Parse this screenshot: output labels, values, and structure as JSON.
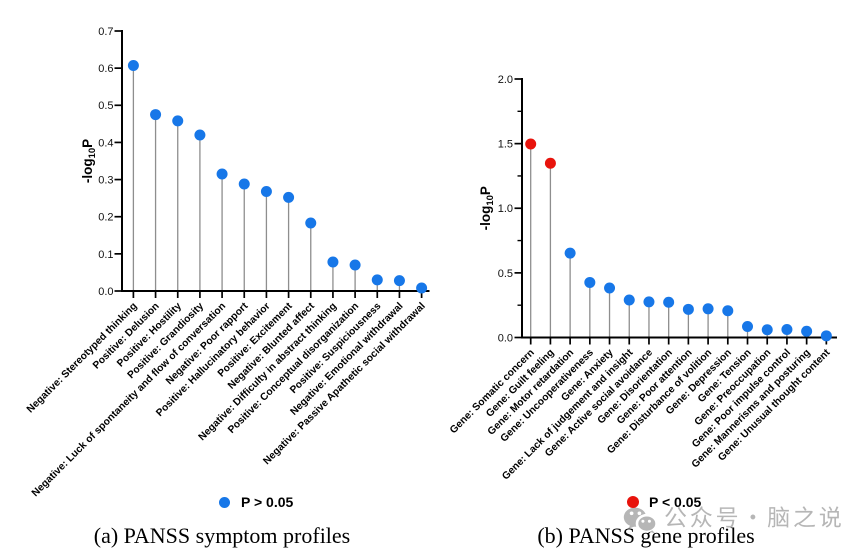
{
  "figure": {
    "background": "#ffffff",
    "type": "lollipop-figure"
  },
  "chart_data": [
    {
      "id": "a",
      "type": "lollipop",
      "title": "(a) PANSS symptom profiles",
      "ylabel": "-log10P",
      "ylim": [
        0,
        0.7
      ],
      "ytick_step": 0.1,
      "ytick_decimals": 1,
      "grid": false,
      "legend": {
        "label": "P > 0.05",
        "color": "#1777E8",
        "position": "bottom"
      },
      "point_color": "#1777E8",
      "categories": [
        "Negative: Stereotyped thinking",
        "Positive: Delusion",
        "Positive: Hostility",
        "Positive: Grandiosity",
        "Negative: Luck of spontaneity and flow of conversation",
        "Negative: Poor rapport",
        "Positive: Hallucinatory behavior",
        "Positive: Excitement",
        "Negative: Blunted affect",
        "Negative: Difficulty in abstract thinking",
        "Positive: Conceptual disorganization",
        "Positive: Suspiciousness",
        "Negative: Emotional withdrawal",
        "Negative: Passive Apathetic social withdrawal"
      ],
      "values": [
        0.607,
        0.475,
        0.458,
        0.42,
        0.315,
        0.288,
        0.268,
        0.252,
        0.183,
        0.078,
        0.07,
        0.03,
        0.028,
        0.008
      ],
      "point_colors": []
    },
    {
      "id": "b",
      "type": "lollipop",
      "title": "(b) PANSS gene profiles",
      "ylabel": "-log10P",
      "ylim": [
        0,
        2.0
      ],
      "ytick_step": 0.5,
      "ytick_minor_step": 0.25,
      "ytick_decimals": 1,
      "grid": false,
      "legend": {
        "label": "P < 0.05",
        "color": "#E8130C",
        "position": "bottom"
      },
      "point_color": "#1777E8",
      "categories": [
        "Gene: Somatic concern",
        "Gene: Guilt feeling",
        "Gene: Motor retardation",
        "Gene: Uncooperativeness",
        "Gene: Anxiety",
        "Gene: Lack of judgement and insight",
        "Gene: Active social avoidance",
        "Gene: Disorientation",
        "Gene: Poor attention",
        "Gene: Disturbance of volition",
        "Gene: Depression",
        "Gene: Tension",
        "Gene: Preoccupation",
        "Gene: Poor impulse control",
        "Gene: Mannerisms and posturing",
        "Gene: Unusual thought content"
      ],
      "values": [
        1.497,
        1.348,
        0.653,
        0.426,
        0.383,
        0.29,
        0.276,
        0.273,
        0.218,
        0.222,
        0.207,
        0.085,
        0.06,
        0.062,
        0.048,
        0.013
      ],
      "point_colors": [
        "#E8130C",
        "#E8130C"
      ]
    }
  ],
  "watermark": {
    "text": "公众号 · 脑之说",
    "icon": "wechat-icon",
    "color": "#b6b6b6"
  }
}
